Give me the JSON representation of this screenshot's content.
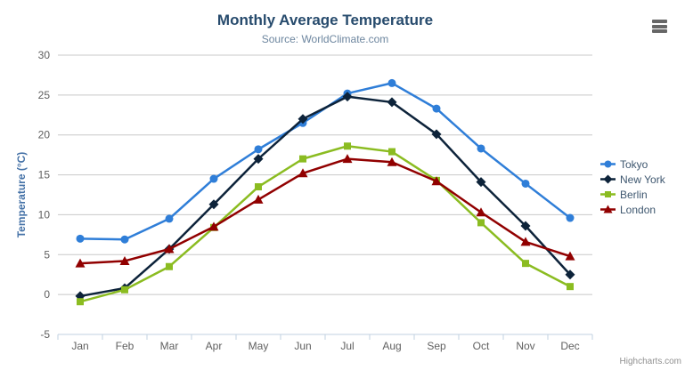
{
  "chart": {
    "credits_label": "Highcharts.com",
    "export_menu_icon": "hamburger-menu-icon"
  },
  "chart_data": {
    "type": "line",
    "title": "Monthly Average Temperature",
    "subtitle": "Source: WorldClimate.com",
    "categories": [
      "Jan",
      "Feb",
      "Mar",
      "Apr",
      "May",
      "Jun",
      "Jul",
      "Aug",
      "Sep",
      "Oct",
      "Nov",
      "Dec"
    ],
    "xlabel": "",
    "ylabel": "Temperature (°C)",
    "ylim": [
      -5,
      30
    ],
    "ytick_interval": 5,
    "grid": true,
    "legend_position": "right",
    "series": [
      {
        "name": "Tokyo",
        "color": "#2f7ed8",
        "marker": "circle",
        "values": [
          7.0,
          6.9,
          9.5,
          14.5,
          18.2,
          21.5,
          25.2,
          26.5,
          23.3,
          18.3,
          13.9,
          9.6
        ]
      },
      {
        "name": "New York",
        "color": "#0d233a",
        "marker": "diamond",
        "values": [
          -0.2,
          0.8,
          5.7,
          11.3,
          17.0,
          22.0,
          24.8,
          24.1,
          20.1,
          14.1,
          8.6,
          2.5
        ]
      },
      {
        "name": "Berlin",
        "color": "#8bbc21",
        "marker": "square",
        "values": [
          -0.9,
          0.6,
          3.5,
          8.4,
          13.5,
          17.0,
          18.6,
          17.9,
          14.3,
          9.0,
          3.9,
          1.0
        ]
      },
      {
        "name": "London",
        "color": "#910000",
        "marker": "triangle",
        "values": [
          3.9,
          4.2,
          5.7,
          8.5,
          11.9,
          15.2,
          17.0,
          16.6,
          14.2,
          10.3,
          6.6,
          4.8
        ]
      }
    ]
  }
}
